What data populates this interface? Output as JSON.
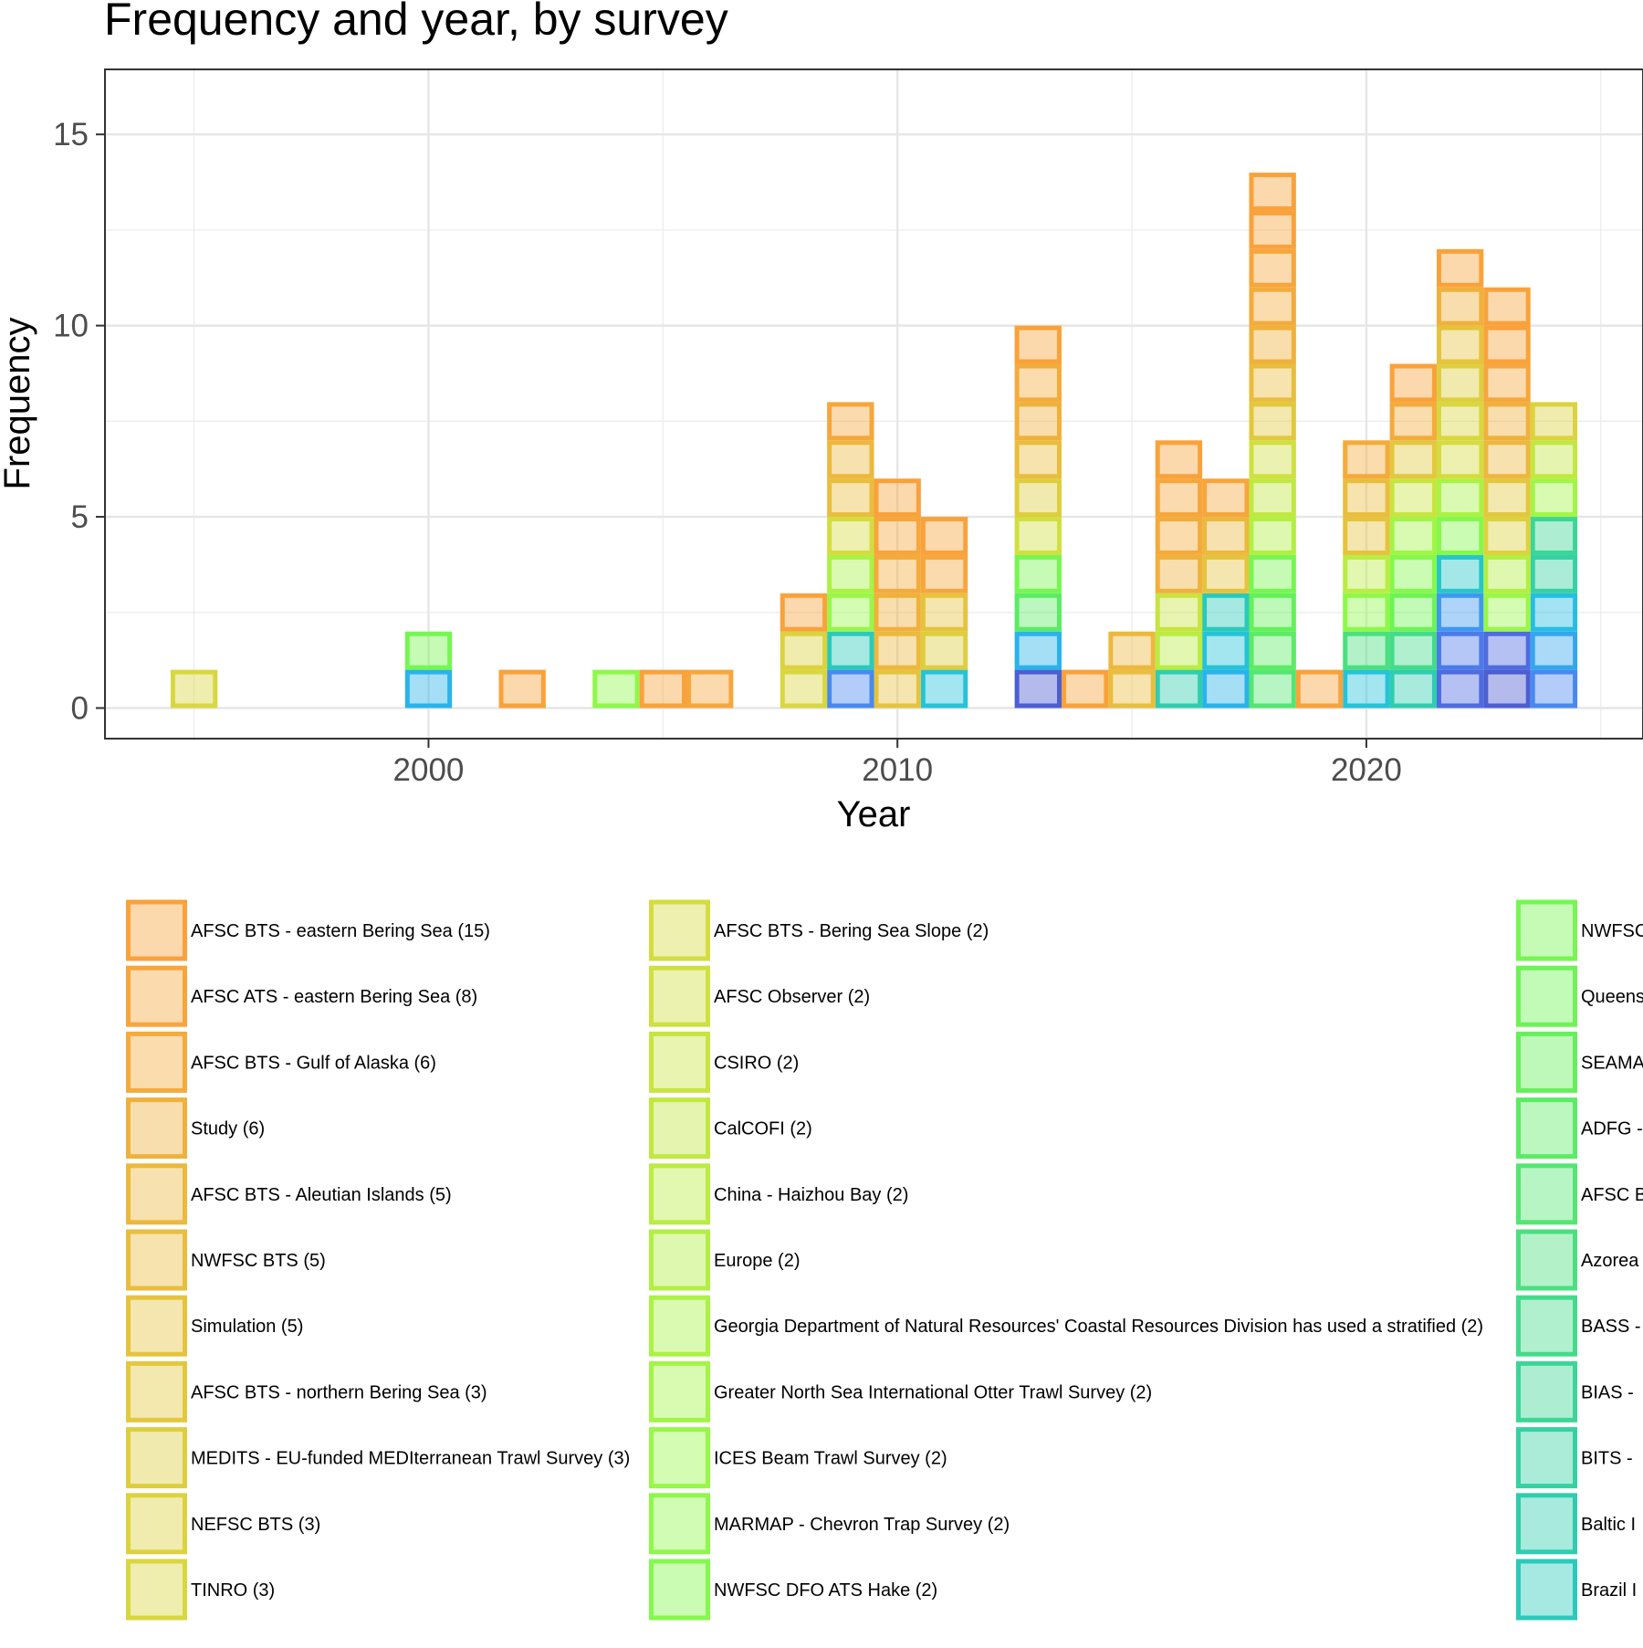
{
  "chart_data": {
    "type": "bar",
    "title": "Frequency and year, by survey",
    "xlabel": "Year",
    "ylabel": "Frequency",
    "xlim": [
      1993.1,
      2025.9
    ],
    "ylim": [
      -0.8,
      16.7
    ],
    "x_ticks": [
      2000,
      2010,
      2020
    ],
    "x_minor_ticks": [
      1995,
      2005,
      2015,
      2025
    ],
    "y_ticks": [
      0,
      5,
      10,
      15
    ],
    "y_minor_ticks": [
      2.5,
      7.5,
      12.5
    ],
    "grid": true,
    "legend_position": "bottom",
    "stacked": true,
    "bin_width": 1,
    "series": [
      {
        "name": "AFSC BTS - eastern Bering Sea (15)",
        "color": "#F9A23B",
        "x": [
          2002,
          2005,
          2008,
          2010,
          2011,
          2013,
          2014,
          2016,
          2018,
          2018,
          2019,
          2021,
          2022,
          2023,
          2023
        ]
      },
      {
        "name": "AFSC ATS - eastern Bering Sea (8)",
        "color": "#F6A63C",
        "x": [
          2006,
          2009,
          2010,
          2011,
          2016,
          2017,
          2018,
          2023
        ]
      },
      {
        "name": "AFSC BTS - Gulf of Alaska (6)",
        "color": "#F3AB3C",
        "x": [
          2010,
          2013,
          2016,
          2018,
          2020,
          2021
        ]
      },
      {
        "name": "Study (6)",
        "color": "#F0B13C",
        "x": [
          2010,
          2013,
          2016,
          2018,
          2022,
          2023
        ]
      },
      {
        "name": "AFSC BTS - Aleutian Islands (5)",
        "color": "#ECB83D",
        "x": [
          2009,
          2010,
          2015,
          2017,
          2023
        ]
      },
      {
        "name": "NWFSC BTS (5)",
        "color": "#E9BD3D",
        "x": [
          2009,
          2013,
          2015,
          2018,
          2020
        ]
      },
      {
        "name": "Simulation (5)",
        "color": "#E5C33D",
        "x": [
          2010,
          2011,
          2017,
          2020,
          2022
        ]
      },
      {
        "name": "AFSC BTS - northern Bering Sea (3)",
        "color": "#E2C83E",
        "x": [
          2018,
          2021,
          2023
        ]
      },
      {
        "name": "MEDITS - EU-funded MEDIterranean Trawl Survey (3)",
        "color": "#DECE3E",
        "x": [
          2011,
          2013,
          2022
        ]
      },
      {
        "name": "NEFSC BTS (3)",
        "color": "#DCD23E",
        "x": [
          2008,
          2023,
          2024
        ]
      },
      {
        "name": "TINRO (3)",
        "color": "#D9D73F",
        "x": [
          1995,
          2008,
          2022
        ]
      },
      {
        "name": "AFSC BTS - Bering Sea Slope (2)",
        "color": "#D5DC3F",
        "x": [
          2009,
          2022
        ]
      },
      {
        "name": "AFSC Observer (2)",
        "color": "#CFE040",
        "x": [
          2013,
          2018
        ]
      },
      {
        "name": "CSIRO (2)",
        "color": "#C8E440",
        "x": [
          2016,
          2021
        ]
      },
      {
        "name": "CalCOFI (2)",
        "color": "#C1E841",
        "x": [
          2018,
          2024
        ]
      },
      {
        "name": "China - Haizhou Bay (2)",
        "color": "#BAEC42",
        "x": [
          2016,
          2020
        ]
      },
      {
        "name": "Europe (2)",
        "color": "#B2EF43",
        "x": [
          2018,
          2023
        ]
      },
      {
        "name": "Georgia Department of Natural Resources' Coastal Resources Division has used a stratified (2)",
        "color": "#AAF244",
        "x": [
          2009,
          2022
        ]
      },
      {
        "name": "Greater North Sea International Otter Trawl Survey (2)",
        "color": "#A1F546",
        "x": [
          2021,
          2024
        ]
      },
      {
        "name": "ICES Beam Trawl Survey (2)",
        "color": "#98F748",
        "x": [
          2009,
          2023
        ]
      },
      {
        "name": "MARMAP - Chevron Trap Survey (2)",
        "color": "#8EF84A",
        "x": [
          2004,
          2020
        ]
      },
      {
        "name": "NWFSC DFO ATS Hake (2)",
        "color": "#84F84C",
        "x": [
          2021,
          2022
        ]
      },
      {
        "name": "NWFSC",
        "color": "#76F652",
        "x": [
          2000,
          2013,
          2018
        ]
      },
      {
        "name": "Queens",
        "color": "#6DF356",
        "x": [
          2021
        ]
      },
      {
        "name": "SEAMA",
        "color": "#65F05B",
        "x": [
          2018
        ]
      },
      {
        "name": "ADFG -",
        "color": "#5CEB65",
        "x": [
          2013,
          2018
        ]
      },
      {
        "name": "AFSC B",
        "color": "#53E672",
        "x": [
          2018
        ]
      },
      {
        "name": "Azorea",
        "color": "#4BE07E",
        "x": [
          2020
        ]
      },
      {
        "name": "BASS -",
        "color": "#43DB8A",
        "x": [
          2021
        ]
      },
      {
        "name": "BIAS -",
        "color": "#3BD696",
        "x": [
          2024
        ]
      },
      {
        "name": "BITS -",
        "color": "#35D1A2",
        "x": [
          2024
        ]
      },
      {
        "name": "Baltic I",
        "color": "#2FCDAE",
        "x": [
          2016,
          2021
        ]
      },
      {
        "name": "Brazil I",
        "color": "#2ACABA",
        "x": [
          2009,
          2017
        ]
      },
      {
        "name": "",
        "color": "#26C6CA",
        "x": [
          2022
        ]
      },
      {
        "name": "",
        "color": "#25C3D8",
        "x": [
          2011,
          2017,
          2020
        ]
      },
      {
        "name": "",
        "color": "#26BDE2",
        "x": [
          2024
        ]
      },
      {
        "name": "",
        "color": "#29B3EA",
        "x": [
          2000,
          2013,
          2017
        ]
      },
      {
        "name": "",
        "color": "#34A6EE",
        "x": [
          2024
        ]
      },
      {
        "name": "",
        "color": "#3F98F0",
        "x": [
          2022
        ]
      },
      {
        "name": "",
        "color": "#4889F0",
        "x": [
          2009,
          2024
        ]
      },
      {
        "name": "",
        "color": "#4C7AEA",
        "x": [
          2022
        ]
      },
      {
        "name": "",
        "color": "#4E6BDF",
        "x": [
          2022,
          2023
        ]
      },
      {
        "name": "",
        "color": "#4C5ED1",
        "x": [
          2013,
          2023
        ]
      }
    ]
  },
  "legend": {
    "columns": [
      {
        "items": [
          {
            "label": "AFSC BTS - eastern Bering Sea (15)",
            "color": "#F9A23B"
          },
          {
            "label": "AFSC ATS - eastern Bering Sea (8)",
            "color": "#F6A63C"
          },
          {
            "label": "AFSC BTS - Gulf of Alaska (6)",
            "color": "#F3AB3C"
          },
          {
            "label": "Study (6)",
            "color": "#F0B13C"
          },
          {
            "label": "AFSC BTS - Aleutian Islands (5)",
            "color": "#ECB83D"
          },
          {
            "label": "NWFSC BTS (5)",
            "color": "#E9BD3D"
          },
          {
            "label": "Simulation (5)",
            "color": "#E5C33D"
          },
          {
            "label": "AFSC BTS - northern Bering Sea (3)",
            "color": "#E2C83E"
          },
          {
            "label": "MEDITS - EU-funded MEDIterranean Trawl Survey (3)",
            "color": "#DECE3E"
          },
          {
            "label": "NEFSC BTS (3)",
            "color": "#DCD23E"
          },
          {
            "label": "TINRO (3)",
            "color": "#D9D73F"
          }
        ]
      },
      {
        "items": [
          {
            "label": "AFSC BTS - Bering Sea Slope (2)",
            "color": "#D5DC3F"
          },
          {
            "label": "AFSC Observer (2)",
            "color": "#CFE040"
          },
          {
            "label": "CSIRO (2)",
            "color": "#C8E440"
          },
          {
            "label": "CalCOFI (2)",
            "color": "#C1E841"
          },
          {
            "label": "China - Haizhou Bay (2)",
            "color": "#BAEC42"
          },
          {
            "label": "Europe (2)",
            "color": "#B2EF43"
          },
          {
            "label": "Georgia Department of Natural Resources' Coastal Resources Division has used a stratified (2)",
            "color": "#AAF244"
          },
          {
            "label": "Greater North Sea International Otter Trawl Survey (2)",
            "color": "#A1F546"
          },
          {
            "label": "ICES Beam Trawl Survey (2)",
            "color": "#98F748"
          },
          {
            "label": "MARMAP - Chevron Trap Survey (2)",
            "color": "#8EF84A"
          },
          {
            "label": "NWFSC DFO ATS Hake (2)",
            "color": "#84F84C"
          }
        ]
      },
      {
        "items": [
          {
            "label": "NWFSC",
            "color": "#76F652"
          },
          {
            "label": "Queens",
            "color": "#6DF356"
          },
          {
            "label": "SEAMA",
            "color": "#65F05B"
          },
          {
            "label": "ADFG -",
            "color": "#5CEB65"
          },
          {
            "label": "AFSC B",
            "color": "#53E672"
          },
          {
            "label": "Azorea",
            "color": "#4BE07E"
          },
          {
            "label": "BASS -",
            "color": "#43DB8A"
          },
          {
            "label": "BIAS -",
            "color": "#3BD696"
          },
          {
            "label": "BITS -",
            "color": "#35D1A2"
          },
          {
            "label": "Baltic I",
            "color": "#2FCDAE"
          },
          {
            "label": "Brazil I",
            "color": "#2ACABA"
          }
        ]
      }
    ]
  }
}
